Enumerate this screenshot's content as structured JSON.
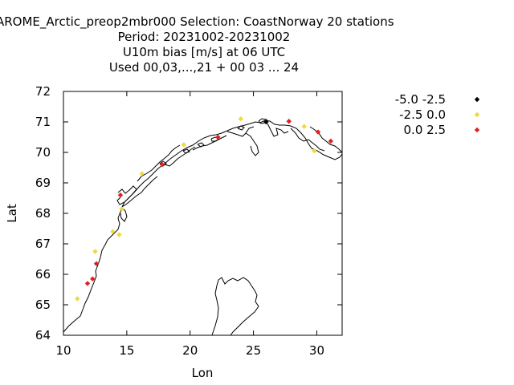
{
  "chart_data": {
    "type": "scatter",
    "title_lines": [
      "AROME_Arctic_preop2mbr000   Selection: CoastNorway     20 stations",
      "Period: 20231002-20231002",
      "U10m bias [m/s] at  06 UTC",
      "Used  00,03,...,21  + 00 03 ... 24"
    ],
    "xlabel": "Lon",
    "ylabel": "Lat",
    "xlim": [
      10,
      32
    ],
    "ylim": [
      64,
      72
    ],
    "xticks": [
      "10",
      "15",
      "20",
      "25",
      "30"
    ],
    "yticks": [
      "64",
      "65",
      "66",
      "67",
      "68",
      "69",
      "70",
      "71",
      "72"
    ],
    "legend_position": "top-right, outside plot",
    "series": [
      {
        "name": "-5.0 -2.5",
        "color": "#000000",
        "points": [
          [
            26.0,
            71.0
          ]
        ]
      },
      {
        "name": "-2.5 0.0",
        "color": "#f0d840",
        "points": [
          [
            11.1,
            65.2
          ],
          [
            12.5,
            66.75
          ],
          [
            13.9,
            67.4
          ],
          [
            14.4,
            67.3
          ],
          [
            14.6,
            68.15
          ],
          [
            16.2,
            69.3
          ],
          [
            19.5,
            70.25
          ],
          [
            24.0,
            71.1
          ],
          [
            29.8,
            70.05
          ],
          [
            29.0,
            70.85
          ]
        ]
      },
      {
        "name": "0.0 2.5",
        "color": "#e02020",
        "points": [
          [
            11.9,
            65.7
          ],
          [
            12.3,
            65.85
          ],
          [
            12.6,
            66.35
          ],
          [
            14.5,
            68.6
          ],
          [
            17.8,
            69.6
          ],
          [
            22.2,
            70.5
          ],
          [
            27.8,
            71.02
          ],
          [
            30.1,
            70.67
          ],
          [
            31.1,
            70.37
          ]
        ]
      }
    ],
    "basemap": "coastline outline of northern Norway"
  }
}
